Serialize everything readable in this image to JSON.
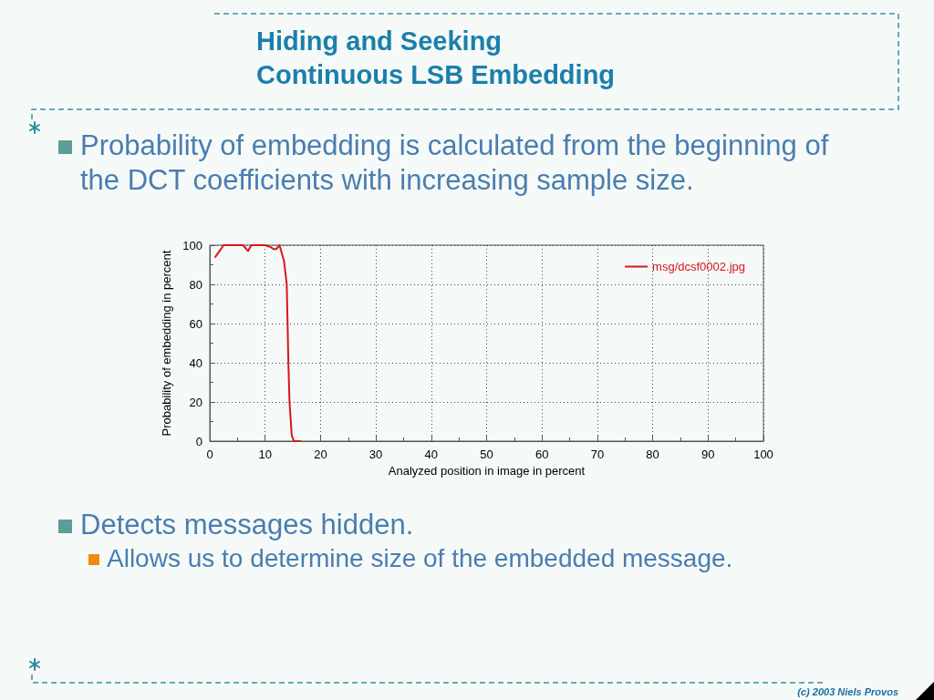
{
  "chart_data": {
    "type": "line",
    "title": "Hiding and Seeking",
    "subtitle": "Continuous LSB Embedding",
    "xlabel": "Analyzed position in image in percent",
    "ylabel": "Probability of embedding in percent",
    "x": [
      1,
      2,
      2.5,
      3,
      4,
      5,
      6,
      6.9,
      7.5,
      8,
      9,
      10,
      11,
      11.5,
      12,
      12.6,
      13.4,
      13.9,
      14.2,
      14.4,
      14.8,
      15.2,
      16.4
    ],
    "series": [
      {
        "name": "msg/dcsf0002.jpg",
        "color": "#d9151b",
        "values": [
          94,
          98,
          100,
          100,
          100,
          100,
          100,
          97,
          100,
          100,
          100,
          100,
          99,
          98,
          98,
          100,
          92,
          80,
          40,
          20,
          3,
          0,
          0
        ]
      }
    ],
    "xlim": [
      0,
      100
    ],
    "ylim": [
      0,
      100
    ],
    "xticks": [
      0,
      10,
      20,
      30,
      40,
      50,
      60,
      70,
      80,
      90,
      100
    ],
    "yticks": [
      0,
      20,
      40,
      60,
      80,
      100
    ],
    "grid": true,
    "legend": "top right",
    "annotations": [
      "Probability of embedding is calculated from the beginning of the DCT coefficients with increasing sample size.",
      "Detects messages hidden.",
      "Allows us to determine size of the embedded message.",
      "(c) 2003 Niels Provos"
    ]
  }
}
